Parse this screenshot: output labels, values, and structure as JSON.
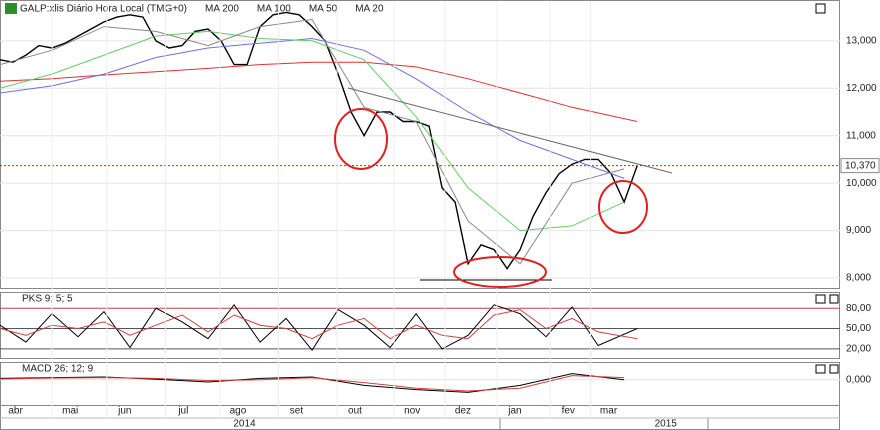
{
  "chart_data": [
    {
      "type": "line",
      "xlim": [
        0,
        64.6
      ],
      "ylim": [
        7.79,
        13.84
      ],
      "yticks": [
        {
          "value": 8,
          "label": "8,000"
        },
        {
          "value": 9,
          "label": "9,000"
        },
        {
          "value": 10,
          "label": "10,000"
        },
        {
          "value": 11,
          "label": "11,000"
        },
        {
          "value": 12,
          "label": "12,000"
        },
        {
          "value": 13,
          "label": "13,000"
        }
      ],
      "price_line": {
        "value": 10.37,
        "label": "10,370"
      },
      "series": [
        {
          "name": "GALP:xlis Diário Hora Local (TMG+0)",
          "color": "#000000",
          "x": [
            0,
            1,
            2,
            3,
            4,
            5,
            6,
            7,
            8,
            9,
            10,
            11,
            12,
            13,
            14,
            15,
            16,
            17,
            18,
            19,
            20,
            21,
            22,
            23,
            24,
            25,
            26,
            27,
            28,
            29,
            30,
            31,
            32,
            33,
            34,
            35,
            36,
            37,
            38,
            39,
            40,
            41,
            42,
            43,
            44,
            45,
            46,
            47,
            48,
            49
          ],
          "values": [
            12.6,
            12.55,
            12.7,
            12.9,
            12.85,
            12.95,
            13.1,
            13.25,
            13.4,
            13.5,
            13.55,
            13.5,
            13.0,
            12.85,
            12.9,
            13.2,
            13.25,
            13.0,
            12.5,
            12.5,
            13.3,
            13.55,
            13.6,
            13.55,
            13.3,
            13.0,
            12.3,
            11.5,
            11.0,
            11.5,
            11.5,
            11.3,
            11.3,
            11.2,
            9.9,
            9.6,
            8.3,
            8.7,
            8.6,
            8.2,
            8.6,
            9.3,
            9.8,
            10.2,
            10.4,
            10.5,
            10.5,
            10.2,
            9.6,
            10.37
          ]
        },
        {
          "name": "MA 200",
          "color": "#e03030",
          "x": [
            0,
            4,
            8,
            12,
            16,
            20,
            24,
            28,
            32,
            36,
            40,
            44,
            49
          ],
          "values": [
            12.15,
            12.2,
            12.28,
            12.35,
            12.42,
            12.5,
            12.55,
            12.55,
            12.45,
            12.2,
            11.9,
            11.6,
            11.3
          ]
        },
        {
          "name": "MA 100",
          "color": "#6f6fe0",
          "x": [
            0,
            4,
            8,
            12,
            16,
            20,
            24,
            28,
            32,
            36,
            40,
            44,
            48
          ],
          "values": [
            11.9,
            12.05,
            12.3,
            12.65,
            12.85,
            12.95,
            13.05,
            12.8,
            12.2,
            11.5,
            10.9,
            10.5,
            10.1
          ]
        },
        {
          "name": "MA 50",
          "color": "#66cc66",
          "x": [
            0,
            4,
            8,
            12,
            16,
            20,
            24,
            28,
            32,
            36,
            40,
            44,
            48
          ],
          "values": [
            12.0,
            12.3,
            12.7,
            13.1,
            13.2,
            13.05,
            13.0,
            12.6,
            11.4,
            9.9,
            9.0,
            9.1,
            9.6
          ]
        },
        {
          "name": "MA 20",
          "color": "#888888",
          "x": [
            0,
            4,
            8,
            12,
            16,
            20,
            24,
            28,
            32,
            36,
            40,
            44,
            48
          ],
          "values": [
            12.5,
            12.8,
            13.3,
            13.2,
            12.9,
            13.3,
            13.45,
            11.6,
            11.3,
            9.2,
            8.3,
            10.0,
            10.3
          ]
        }
      ]
    },
    {
      "type": "line",
      "title": "PKS 9; 5; 5",
      "xlim": [
        0,
        64.6
      ],
      "ylim": [
        6.5,
        102.5
      ],
      "yticks": [
        {
          "value": 20,
          "label": "20,00"
        },
        {
          "value": 50,
          "label": "50,00"
        },
        {
          "value": 80,
          "label": "80,00"
        }
      ],
      "series": [
        {
          "color": "#000000",
          "x": [
            0,
            2,
            4,
            6,
            8,
            10,
            12,
            14,
            16,
            18,
            20,
            22,
            24,
            26,
            28,
            30,
            32,
            34,
            36,
            38,
            40,
            42,
            44,
            46,
            49
          ],
          "values": [
            55,
            30,
            72,
            38,
            75,
            22,
            80,
            60,
            35,
            85,
            30,
            65,
            18,
            78,
            55,
            22,
            72,
            20,
            40,
            85,
            72,
            38,
            82,
            25,
            50
          ]
        },
        {
          "color": "#d04040",
          "x": [
            0,
            2,
            4,
            6,
            8,
            10,
            12,
            14,
            16,
            18,
            20,
            22,
            24,
            26,
            28,
            30,
            32,
            34,
            36,
            38,
            40,
            42,
            44,
            46,
            49
          ],
          "values": [
            50,
            40,
            55,
            50,
            60,
            40,
            55,
            70,
            45,
            70,
            55,
            50,
            35,
            55,
            65,
            35,
            55,
            40,
            35,
            70,
            78,
            50,
            65,
            45,
            35
          ]
        }
      ]
    },
    {
      "type": "line",
      "title": "MACD 26; 12; 9",
      "xlim": [
        0,
        64.6
      ],
      "ylim": [
        -0.9,
        0.6
      ],
      "yticks": [
        {
          "value": 0,
          "label": "0,000"
        }
      ],
      "xticks": [
        {
          "value": 1.2,
          "label": "abr"
        },
        {
          "value": 5.4,
          "label": "mai"
        },
        {
          "value": 9.6,
          "label": "jun"
        },
        {
          "value": 14.1,
          "label": "jul"
        },
        {
          "value": 18.3,
          "label": "ago"
        },
        {
          "value": 22.8,
          "label": "set"
        },
        {
          "value": 27.3,
          "label": "out"
        },
        {
          "value": 31.7,
          "label": "nov"
        },
        {
          "value": 35.6,
          "label": "dez"
        },
        {
          "value": 39.6,
          "label": "jan"
        },
        {
          "value": 43.7,
          "label": "fev"
        },
        {
          "value": 46.8,
          "label": "mar"
        }
      ],
      "year_labels": [
        {
          "value": 18.8,
          "label": "2014"
        },
        {
          "value": 51.2,
          "label": "2015"
        }
      ],
      "series": [
        {
          "color": "#000000",
          "x": [
            0,
            4,
            8,
            12,
            16,
            20,
            24,
            28,
            32,
            36,
            40,
            44,
            48
          ],
          "values": [
            0.05,
            0.08,
            0.1,
            0.02,
            -0.08,
            0.05,
            0.1,
            -0.2,
            -0.35,
            -0.45,
            -0.2,
            0.22,
            0.0
          ]
        },
        {
          "color": "#d04040",
          "x": [
            0,
            4,
            8,
            12,
            16,
            20,
            24,
            28,
            32,
            36,
            40,
            44,
            48
          ],
          "values": [
            0.03,
            0.06,
            0.08,
            0.05,
            -0.03,
            0.0,
            0.07,
            -0.1,
            -0.3,
            -0.4,
            -0.3,
            0.15,
            0.08
          ]
        }
      ]
    }
  ]
}
